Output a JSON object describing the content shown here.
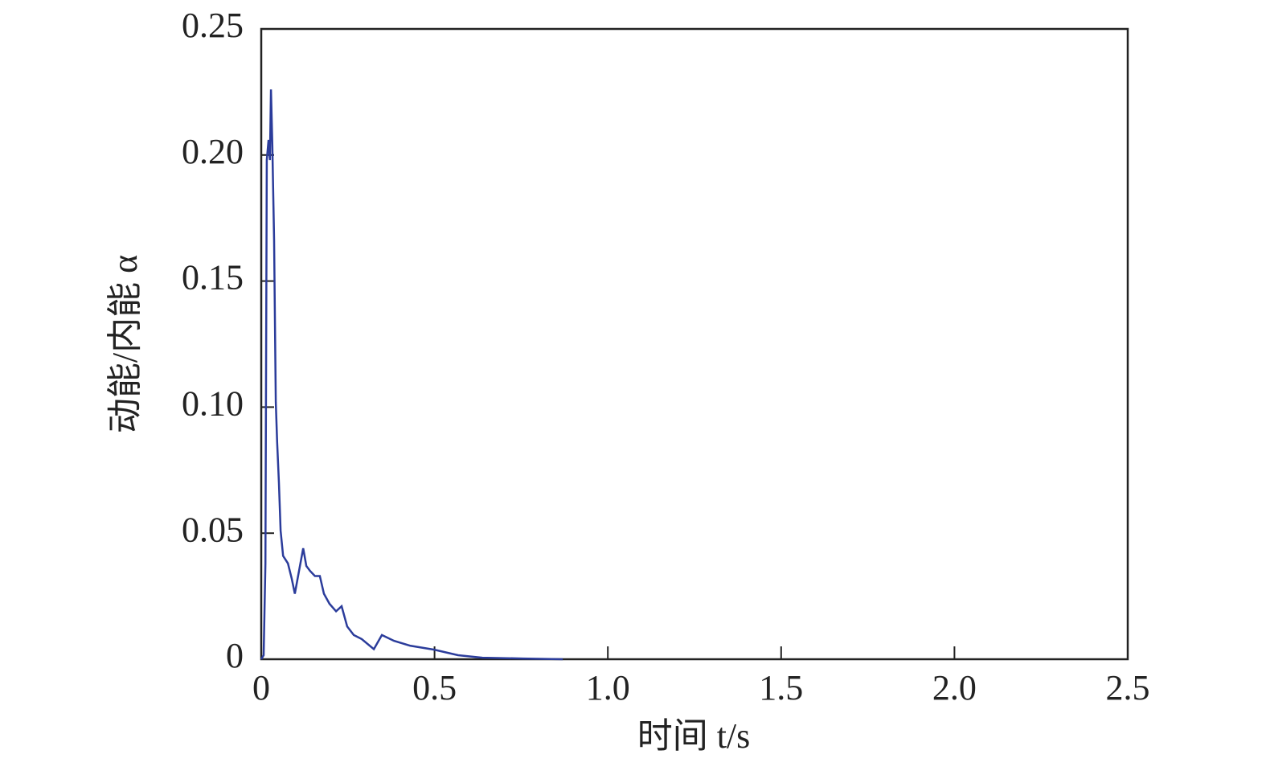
{
  "chart_data": {
    "type": "line",
    "x_label": "时间 t/s",
    "y_label": "动能/内能 α",
    "xlim": [
      0,
      2.5
    ],
    "xticks": [
      0,
      0.5,
      {
        "value": 1,
        "label": "1.0"
      },
      1.5,
      {
        "value": 2,
        "label": "2.0"
      },
      2.5
    ],
    "ylim": [
      0,
      0.25
    ],
    "yticks": [
      0,
      0.05,
      {
        "value": 0.1,
        "label": "0.10"
      },
      0.15,
      {
        "value": 0.2,
        "label": "0.20"
      },
      0.25
    ],
    "series": [
      {
        "color": "#2b3c9b",
        "x": [
          0,
          0.007,
          0.012,
          0.016,
          0.021,
          0.025,
          0.028,
          0.032,
          0.037,
          0.042,
          0.046,
          0.051,
          0.056,
          0.063,
          0.077,
          0.088,
          0.097,
          0.109,
          0.121,
          0.13,
          0.141,
          0.155,
          0.169,
          0.181,
          0.197,
          0.216,
          0.232,
          0.248,
          0.267,
          0.29,
          0.325,
          0.348,
          0.383,
          0.429,
          0.499,
          0.568,
          0.638,
          0.754,
          0.87
        ],
        "values": [
          0,
          0.0016,
          0.038,
          0.198,
          0.206,
          0.198,
          0.226,
          0.204,
          0.166,
          0.102,
          0.086,
          0.07,
          0.051,
          0.041,
          0.038,
          0.032,
          0.026,
          0.035,
          0.044,
          0.037,
          0.035,
          0.033,
          0.033,
          0.026,
          0.022,
          0.019,
          0.021,
          0.013,
          0.0096,
          0.008,
          0.004,
          0.0096,
          0.0073,
          0.0054,
          0.0038,
          0.0016,
          0.0006,
          0.0003,
          0
        ]
      }
    ]
  }
}
